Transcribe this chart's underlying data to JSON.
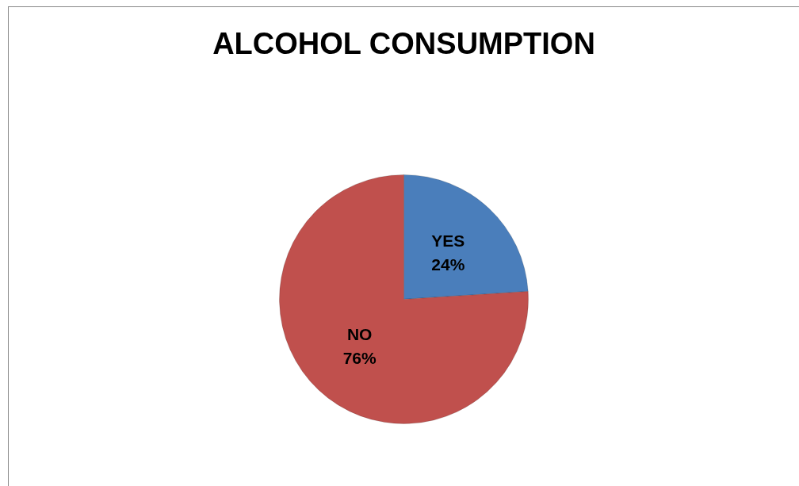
{
  "chart_data": {
    "type": "pie",
    "title": "ALCOHOL CONSUMPTION",
    "categories": [
      "YES",
      "NO"
    ],
    "values": [
      24,
      76
    ],
    "value_labels": [
      "24%",
      "76%"
    ],
    "colors": [
      "#4a7ebb",
      "#c0504d"
    ],
    "legend": false
  }
}
